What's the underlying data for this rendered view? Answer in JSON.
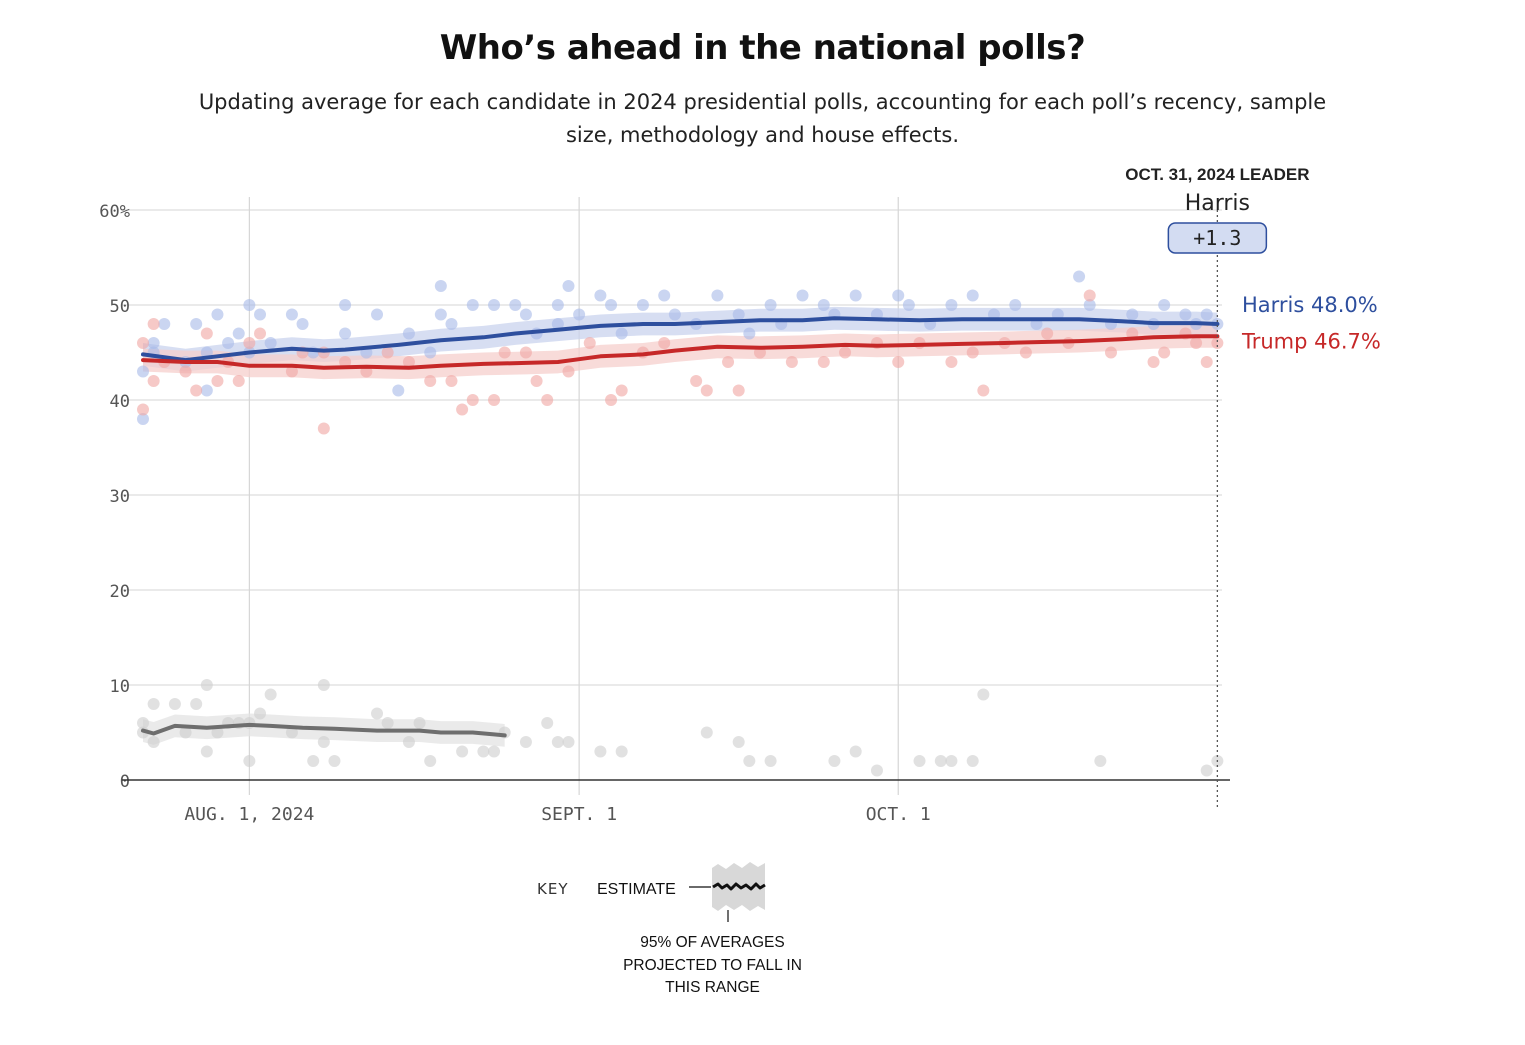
{
  "chart_data": {
    "type": "line",
    "title": "Who’s ahead in the national polls?",
    "subtitle": "Updating average for each candidate in 2024 presidential polls, accounting for each poll’s recency, sample size, methodology and house effects.",
    "y_ticks": [
      "60%",
      "50",
      "40",
      "30",
      "20",
      "10",
      "0"
    ],
    "y_tick_values": [
      60,
      50,
      40,
      30,
      20,
      10,
      0
    ],
    "ylim": [
      0,
      60
    ],
    "x_ticks": [
      {
        "label": "AUG. 1, 2024",
        "date": "2024-08-01"
      },
      {
        "label": "SEPT. 1",
        "date": "2024-09-01"
      },
      {
        "label": "OCT. 1",
        "date": "2024-10-01"
      }
    ],
    "xlim": [
      "2024-07-22",
      "2024-11-01"
    ],
    "grid": true,
    "leader": {
      "heading": "OCT. 31, 2024 LEADER",
      "name": "Harris",
      "margin": "+1.3",
      "date": "2024-10-31"
    },
    "series": [
      {
        "name": "Harris",
        "end_label": "Harris 48.0%",
        "color": "#2e4f9e",
        "dot_color": "#a9bce8",
        "band_color": "#c9d3ee",
        "estimate": [
          [
            "2024-07-22",
            44.8
          ],
          [
            "2024-07-26",
            44.2
          ],
          [
            "2024-07-29",
            44.6
          ],
          [
            "2024-08-01",
            45.0
          ],
          [
            "2024-08-05",
            45.4
          ],
          [
            "2024-08-08",
            45.2
          ],
          [
            "2024-08-10",
            45.3
          ],
          [
            "2024-08-15",
            45.8
          ],
          [
            "2024-08-19",
            46.3
          ],
          [
            "2024-08-23",
            46.6
          ],
          [
            "2024-08-26",
            47.0
          ],
          [
            "2024-08-30",
            47.4
          ],
          [
            "2024-09-01",
            47.6
          ],
          [
            "2024-09-03",
            47.8
          ],
          [
            "2024-09-07",
            48.0
          ],
          [
            "2024-09-10",
            48.0
          ],
          [
            "2024-09-14",
            48.2
          ],
          [
            "2024-09-18",
            48.4
          ],
          [
            "2024-09-22",
            48.4
          ],
          [
            "2024-09-25",
            48.6
          ],
          [
            "2024-09-29",
            48.5
          ],
          [
            "2024-10-03",
            48.4
          ],
          [
            "2024-10-07",
            48.5
          ],
          [
            "2024-10-11",
            48.5
          ],
          [
            "2024-10-15",
            48.5
          ],
          [
            "2024-10-18",
            48.5
          ],
          [
            "2024-10-22",
            48.3
          ],
          [
            "2024-10-25",
            48.1
          ],
          [
            "2024-10-29",
            48.1
          ],
          [
            "2024-10-31",
            48.0
          ]
        ],
        "polls": [
          [
            "2024-07-22",
            43
          ],
          [
            "2024-07-22",
            38
          ],
          [
            "2024-07-23",
            46
          ],
          [
            "2024-07-23",
            45
          ],
          [
            "2024-07-24",
            48
          ],
          [
            "2024-07-26",
            44
          ],
          [
            "2024-07-27",
            48
          ],
          [
            "2024-07-28",
            45
          ],
          [
            "2024-07-28",
            41
          ],
          [
            "2024-07-29",
            49
          ],
          [
            "2024-07-30",
            46
          ],
          [
            "2024-07-31",
            47
          ],
          [
            "2024-08-01",
            50
          ],
          [
            "2024-08-01",
            45
          ],
          [
            "2024-08-02",
            49
          ],
          [
            "2024-08-03",
            46
          ],
          [
            "2024-08-05",
            49
          ],
          [
            "2024-08-06",
            48
          ],
          [
            "2024-08-07",
            45
          ],
          [
            "2024-08-10",
            50
          ],
          [
            "2024-08-10",
            47
          ],
          [
            "2024-08-12",
            45
          ],
          [
            "2024-08-13",
            49
          ],
          [
            "2024-08-15",
            41
          ],
          [
            "2024-08-16",
            47
          ],
          [
            "2024-08-18",
            45
          ],
          [
            "2024-08-19",
            49
          ],
          [
            "2024-08-19",
            52
          ],
          [
            "2024-08-20",
            48
          ],
          [
            "2024-08-22",
            50
          ],
          [
            "2024-08-24",
            50
          ],
          [
            "2024-08-26",
            50
          ],
          [
            "2024-08-27",
            49
          ],
          [
            "2024-08-28",
            47
          ],
          [
            "2024-08-30",
            50
          ],
          [
            "2024-08-30",
            48
          ],
          [
            "2024-08-31",
            52
          ],
          [
            "2024-09-01",
            49
          ],
          [
            "2024-09-03",
            51
          ],
          [
            "2024-09-04",
            50
          ],
          [
            "2024-09-05",
            47
          ],
          [
            "2024-09-07",
            50
          ],
          [
            "2024-09-09",
            51
          ],
          [
            "2024-09-10",
            49
          ],
          [
            "2024-09-12",
            48
          ],
          [
            "2024-09-14",
            51
          ],
          [
            "2024-09-16",
            49
          ],
          [
            "2024-09-17",
            47
          ],
          [
            "2024-09-19",
            50
          ],
          [
            "2024-09-20",
            48
          ],
          [
            "2024-09-22",
            51
          ],
          [
            "2024-09-24",
            50
          ],
          [
            "2024-09-25",
            49
          ],
          [
            "2024-09-27",
            51
          ],
          [
            "2024-09-29",
            49
          ],
          [
            "2024-10-01",
            51
          ],
          [
            "2024-10-02",
            50
          ],
          [
            "2024-10-04",
            48
          ],
          [
            "2024-10-06",
            50
          ],
          [
            "2024-10-08",
            51
          ],
          [
            "2024-10-10",
            49
          ],
          [
            "2024-10-12",
            50
          ],
          [
            "2024-10-14",
            48
          ],
          [
            "2024-10-16",
            49
          ],
          [
            "2024-10-18",
            53
          ],
          [
            "2024-10-19",
            50
          ],
          [
            "2024-10-21",
            48
          ],
          [
            "2024-10-23",
            49
          ],
          [
            "2024-10-25",
            48
          ],
          [
            "2024-10-26",
            50
          ],
          [
            "2024-10-28",
            49
          ],
          [
            "2024-10-29",
            48
          ],
          [
            "2024-10-30",
            49
          ],
          [
            "2024-10-31",
            48
          ]
        ]
      },
      {
        "name": "Trump",
        "end_label": "Trump 46.7%",
        "color": "#c62828",
        "dot_color": "#f0a8a4",
        "band_color": "#f6cfcc",
        "estimate": [
          [
            "2024-07-22",
            44.2
          ],
          [
            "2024-07-26",
            44.0
          ],
          [
            "2024-07-29",
            44.0
          ],
          [
            "2024-08-01",
            43.6
          ],
          [
            "2024-08-05",
            43.6
          ],
          [
            "2024-08-08",
            43.4
          ],
          [
            "2024-08-12",
            43.5
          ],
          [
            "2024-08-16",
            43.4
          ],
          [
            "2024-08-19",
            43.6
          ],
          [
            "2024-08-23",
            43.8
          ],
          [
            "2024-08-27",
            43.9
          ],
          [
            "2024-08-30",
            44.0
          ],
          [
            "2024-09-01",
            44.3
          ],
          [
            "2024-09-03",
            44.6
          ],
          [
            "2024-09-07",
            44.8
          ],
          [
            "2024-09-10",
            45.2
          ],
          [
            "2024-09-14",
            45.6
          ],
          [
            "2024-09-18",
            45.5
          ],
          [
            "2024-09-22",
            45.6
          ],
          [
            "2024-09-26",
            45.8
          ],
          [
            "2024-09-29",
            45.7
          ],
          [
            "2024-10-03",
            45.8
          ],
          [
            "2024-10-07",
            45.9
          ],
          [
            "2024-10-11",
            46.0
          ],
          [
            "2024-10-14",
            46.1
          ],
          [
            "2024-10-18",
            46.2
          ],
          [
            "2024-10-22",
            46.4
          ],
          [
            "2024-10-25",
            46.6
          ],
          [
            "2024-10-29",
            46.7
          ],
          [
            "2024-10-31",
            46.7
          ]
        ],
        "polls": [
          [
            "2024-07-22",
            39
          ],
          [
            "2024-07-22",
            46
          ],
          [
            "2024-07-23",
            42
          ],
          [
            "2024-07-23",
            48
          ],
          [
            "2024-07-24",
            44
          ],
          [
            "2024-07-26",
            43
          ],
          [
            "2024-07-27",
            41
          ],
          [
            "2024-07-28",
            47
          ],
          [
            "2024-07-29",
            42
          ],
          [
            "2024-07-30",
            44
          ],
          [
            "2024-07-31",
            42
          ],
          [
            "2024-08-01",
            46
          ],
          [
            "2024-08-02",
            47
          ],
          [
            "2024-08-05",
            43
          ],
          [
            "2024-08-06",
            45
          ],
          [
            "2024-08-08",
            37
          ],
          [
            "2024-08-08",
            45
          ],
          [
            "2024-08-10",
            44
          ],
          [
            "2024-08-12",
            43
          ],
          [
            "2024-08-14",
            45
          ],
          [
            "2024-08-16",
            44
          ],
          [
            "2024-08-18",
            42
          ],
          [
            "2024-08-20",
            42
          ],
          [
            "2024-08-21",
            39
          ],
          [
            "2024-08-22",
            40
          ],
          [
            "2024-08-24",
            40
          ],
          [
            "2024-08-25",
            45
          ],
          [
            "2024-08-27",
            45
          ],
          [
            "2024-08-28",
            42
          ],
          [
            "2024-08-29",
            40
          ],
          [
            "2024-08-31",
            43
          ],
          [
            "2024-09-02",
            46
          ],
          [
            "2024-09-04",
            40
          ],
          [
            "2024-09-05",
            41
          ],
          [
            "2024-09-07",
            45
          ],
          [
            "2024-09-09",
            46
          ],
          [
            "2024-09-12",
            42
          ],
          [
            "2024-09-13",
            41
          ],
          [
            "2024-09-15",
            44
          ],
          [
            "2024-09-16",
            41
          ],
          [
            "2024-09-18",
            45
          ],
          [
            "2024-09-21",
            44
          ],
          [
            "2024-09-24",
            44
          ],
          [
            "2024-09-26",
            45
          ],
          [
            "2024-09-29",
            46
          ],
          [
            "2024-10-01",
            44
          ],
          [
            "2024-10-03",
            46
          ],
          [
            "2024-10-06",
            44
          ],
          [
            "2024-10-08",
            45
          ],
          [
            "2024-10-09",
            41
          ],
          [
            "2024-10-11",
            46
          ],
          [
            "2024-10-13",
            45
          ],
          [
            "2024-10-15",
            47
          ],
          [
            "2024-10-17",
            46
          ],
          [
            "2024-10-19",
            51
          ],
          [
            "2024-10-21",
            45
          ],
          [
            "2024-10-23",
            47
          ],
          [
            "2024-10-25",
            44
          ],
          [
            "2024-10-26",
            45
          ],
          [
            "2024-10-28",
            47
          ],
          [
            "2024-10-29",
            46
          ],
          [
            "2024-10-30",
            44
          ],
          [
            "2024-10-31",
            46
          ]
        ]
      },
      {
        "name": "",
        "color": "#6e6e6e",
        "dot_color": "#cfcfcf",
        "band_color": "#e3e3e3",
        "estimate": [
          [
            "2024-07-22",
            5.2
          ],
          [
            "2024-07-23",
            4.9
          ],
          [
            "2024-07-25",
            5.7
          ],
          [
            "2024-07-28",
            5.5
          ],
          [
            "2024-08-01",
            5.8
          ],
          [
            "2024-08-03",
            5.7
          ],
          [
            "2024-08-06",
            5.5
          ],
          [
            "2024-08-09",
            5.4
          ],
          [
            "2024-08-13",
            5.2
          ],
          [
            "2024-08-17",
            5.2
          ],
          [
            "2024-08-19",
            5.0
          ],
          [
            "2024-08-22",
            5.0
          ],
          [
            "2024-08-24",
            4.8
          ],
          [
            "2024-08-25",
            4.7
          ]
        ],
        "polls": [
          [
            "2024-07-22",
            6
          ],
          [
            "2024-07-22",
            5
          ],
          [
            "2024-07-23",
            4
          ],
          [
            "2024-07-23",
            8
          ],
          [
            "2024-07-25",
            8
          ],
          [
            "2024-07-26",
            5
          ],
          [
            "2024-07-27",
            8
          ],
          [
            "2024-07-28",
            10
          ],
          [
            "2024-07-28",
            3
          ],
          [
            "2024-07-29",
            5
          ],
          [
            "2024-07-30",
            6
          ],
          [
            "2024-07-31",
            6
          ],
          [
            "2024-08-01",
            6
          ],
          [
            "2024-08-01",
            2
          ],
          [
            "2024-08-02",
            7
          ],
          [
            "2024-08-03",
            9
          ],
          [
            "2024-08-05",
            5
          ],
          [
            "2024-08-07",
            2
          ],
          [
            "2024-08-08",
            10
          ],
          [
            "2024-08-08",
            4
          ],
          [
            "2024-08-09",
            2
          ],
          [
            "2024-08-13",
            7
          ],
          [
            "2024-08-14",
            6
          ],
          [
            "2024-08-16",
            4
          ],
          [
            "2024-08-17",
            6
          ],
          [
            "2024-08-18",
            2
          ],
          [
            "2024-08-21",
            3
          ],
          [
            "2024-08-23",
            3
          ],
          [
            "2024-08-24",
            3
          ],
          [
            "2024-08-25",
            5
          ],
          [
            "2024-08-27",
            4
          ],
          [
            "2024-08-29",
            6
          ],
          [
            "2024-08-30",
            4
          ],
          [
            "2024-08-31",
            4
          ],
          [
            "2024-09-03",
            3
          ],
          [
            "2024-09-05",
            3
          ],
          [
            "2024-09-13",
            5
          ],
          [
            "2024-09-16",
            4
          ],
          [
            "2024-09-17",
            2
          ],
          [
            "2024-09-19",
            2
          ],
          [
            "2024-09-25",
            2
          ],
          [
            "2024-09-27",
            3
          ],
          [
            "2024-09-29",
            1
          ],
          [
            "2024-10-03",
            2
          ],
          [
            "2024-10-05",
            2
          ],
          [
            "2024-10-06",
            2
          ],
          [
            "2024-10-08",
            2
          ],
          [
            "2024-10-09",
            9
          ],
          [
            "2024-10-20",
            2
          ],
          [
            "2024-10-30",
            1
          ],
          [
            "2024-10-31",
            2
          ]
        ]
      }
    ]
  },
  "key": {
    "label": "KEY",
    "estimate_label": "ESTIMATE",
    "range_line1": "95% OF AVERAGES",
    "range_line2": "PROJECTED TO FALL IN",
    "range_line3": "THIS RANGE"
  }
}
